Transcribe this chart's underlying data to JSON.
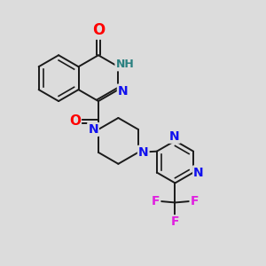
{
  "bg_color": "#dcdcdc",
  "bond_color": "#1a1a1a",
  "bond_width": 1.4,
  "atom_colors": {
    "O": "#ff0000",
    "N": "#1010ee",
    "NH": "#2a8080",
    "F": "#e020e0",
    "C": "#1a1a1a"
  },
  "font_size": 10,
  "figsize": [
    3.0,
    3.0
  ],
  "dpi": 100
}
